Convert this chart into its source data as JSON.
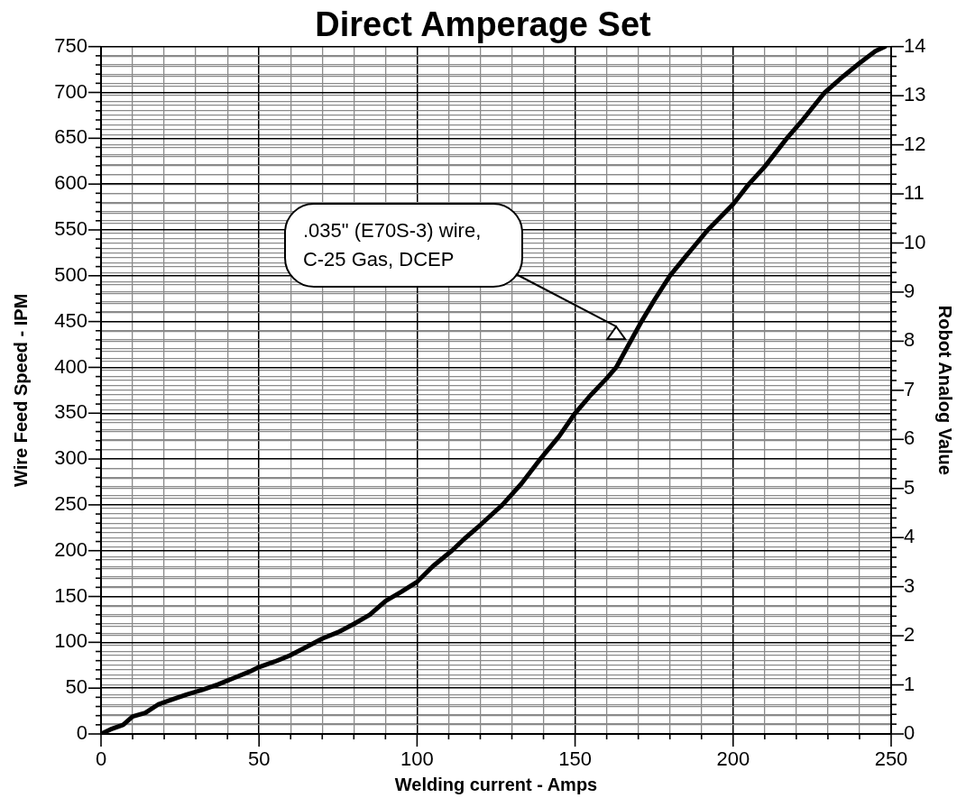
{
  "chart_data": {
    "type": "line",
    "title": "Direct Amperage Set",
    "xlabel": "Welding current - Amps",
    "ylabel": "Wire Feed Speed - IPM",
    "y2label": "Robot Analog Value",
    "x": [
      0,
      3,
      7,
      10,
      14,
      18,
      22,
      27,
      32,
      37,
      42,
      47,
      50,
      55,
      60,
      65,
      70,
      75,
      80,
      85,
      90,
      95,
      100,
      105,
      111,
      115,
      120,
      127,
      133,
      139,
      145,
      150,
      155,
      160,
      163,
      167,
      171,
      175,
      180,
      185,
      192,
      200,
      205,
      210,
      217,
      222,
      229,
      235,
      240,
      245,
      248
    ],
    "series": [
      {
        "color": "#000000",
        "values": [
          0,
          5,
          10,
          19,
          23,
          32,
          37,
          43,
          48,
          54,
          61,
          68,
          73,
          79,
          86,
          95,
          104,
          111,
          120,
          130,
          145,
          155,
          166,
          183,
          200,
          213,
          228,
          250,
          273,
          300,
          325,
          350,
          370,
          388,
          400,
          425,
          450,
          473,
          500,
          521,
          550,
          578,
          600,
          619,
          650,
          670,
          700,
          718,
          732,
          745,
          750
        ]
      }
    ],
    "xlim": [
      0,
      250
    ],
    "ylim": [
      0,
      750
    ],
    "y2lim": [
      0,
      14
    ],
    "xticks": [
      0,
      {
        "value": 10,
        "label": null
      },
      {
        "value": 20,
        "label": null
      },
      {
        "value": 30,
        "label": null
      },
      {
        "value": 40,
        "label": null
      },
      50,
      {
        "value": 60,
        "label": null
      },
      {
        "value": 70,
        "label": null
      },
      {
        "value": 80,
        "label": null
      },
      {
        "value": 90,
        "label": null
      },
      100,
      {
        "value": 110,
        "label": null
      },
      {
        "value": 120,
        "label": null
      },
      {
        "value": 130,
        "label": null
      },
      {
        "value": 140,
        "label": null
      },
      150,
      {
        "value": 160,
        "label": null
      },
      {
        "value": 170,
        "label": null
      },
      {
        "value": 180,
        "label": null
      },
      {
        "value": 190,
        "label": null
      },
      200,
      {
        "value": 210,
        "label": null
      },
      {
        "value": 220,
        "label": null
      },
      {
        "value": 230,
        "label": null
      },
      {
        "value": 240,
        "label": null
      },
      250
    ],
    "yticks": [
      0,
      {
        "value": 10,
        "label": null
      },
      {
        "value": 20,
        "label": null
      },
      {
        "value": 30,
        "label": null
      },
      {
        "value": 40,
        "label": null
      },
      50,
      {
        "value": 60,
        "label": null
      },
      {
        "value": 70,
        "label": null
      },
      {
        "value": 80,
        "label": null
      },
      {
        "value": 90,
        "label": null
      },
      100,
      {
        "value": 110,
        "label": null
      },
      {
        "value": 120,
        "label": null
      },
      {
        "value": 130,
        "label": null
      },
      {
        "value": 140,
        "label": null
      },
      150,
      {
        "value": 160,
        "label": null
      },
      {
        "value": 170,
        "label": null
      },
      {
        "value": 180,
        "label": null
      },
      {
        "value": 190,
        "label": null
      },
      200,
      {
        "value": 210,
        "label": null
      },
      {
        "value": 220,
        "label": null
      },
      {
        "value": 230,
        "label": null
      },
      {
        "value": 240,
        "label": null
      },
      250,
      {
        "value": 260,
        "label": null
      },
      {
        "value": 270,
        "label": null
      },
      {
        "value": 280,
        "label": null
      },
      {
        "value": 290,
        "label": null
      },
      300,
      {
        "value": 310,
        "label": null
      },
      {
        "value": 320,
        "label": null
      },
      {
        "value": 330,
        "label": null
      },
      {
        "value": 340,
        "label": null
      },
      350,
      {
        "value": 360,
        "label": null
      },
      {
        "value": 370,
        "label": null
      },
      {
        "value": 380,
        "label": null
      },
      {
        "value": 390,
        "label": null
      },
      400,
      {
        "value": 410,
        "label": null
      },
      {
        "value": 420,
        "label": null
      },
      {
        "value": 430,
        "label": null
      },
      {
        "value": 440,
        "label": null
      },
      450,
      {
        "value": 460,
        "label": null
      },
      {
        "value": 470,
        "label": null
      },
      {
        "value": 480,
        "label": null
      },
      {
        "value": 490,
        "label": null
      },
      500,
      {
        "value": 510,
        "label": null
      },
      {
        "value": 520,
        "label": null
      },
      {
        "value": 530,
        "label": null
      },
      {
        "value": 540,
        "label": null
      },
      550,
      {
        "value": 560,
        "label": null
      },
      {
        "value": 570,
        "label": null
      },
      {
        "value": 580,
        "label": null
      },
      {
        "value": 590,
        "label": null
      },
      600,
      {
        "value": 610,
        "label": null
      },
      {
        "value": 620,
        "label": null
      },
      {
        "value": 630,
        "label": null
      },
      {
        "value": 640,
        "label": null
      },
      650,
      {
        "value": 660,
        "label": null
      },
      {
        "value": 670,
        "label": null
      },
      {
        "value": 680,
        "label": null
      },
      {
        "value": 690,
        "label": null
      },
      700,
      {
        "value": 710,
        "label": null
      },
      {
        "value": 720,
        "label": null
      },
      {
        "value": 730,
        "label": null
      },
      {
        "value": 740,
        "label": null
      },
      750
    ],
    "y2ticks": [
      0,
      {
        "value": 0.2,
        "label": null
      },
      {
        "value": 0.4,
        "label": null
      },
      {
        "value": 0.6,
        "label": null
      },
      {
        "value": 0.8,
        "label": null
      },
      1,
      {
        "value": 1.2,
        "label": null
      },
      {
        "value": 1.4,
        "label": null
      },
      {
        "value": 1.6,
        "label": null
      },
      {
        "value": 1.8,
        "label": null
      },
      2,
      {
        "value": 2.2,
        "label": null
      },
      {
        "value": 2.4,
        "label": null
      },
      {
        "value": 2.6,
        "label": null
      },
      {
        "value": 2.8,
        "label": null
      },
      3,
      {
        "value": 3.2,
        "label": null
      },
      {
        "value": 3.4,
        "label": null
      },
      {
        "value": 3.6,
        "label": null
      },
      {
        "value": 3.8,
        "label": null
      },
      4,
      {
        "value": 4.2,
        "label": null
      },
      {
        "value": 4.4,
        "label": null
      },
      {
        "value": 4.6,
        "label": null
      },
      {
        "value": 4.8,
        "label": null
      },
      5,
      {
        "value": 5.2,
        "label": null
      },
      {
        "value": 5.4,
        "label": null
      },
      {
        "value": 5.6,
        "label": null
      },
      {
        "value": 5.8,
        "label": null
      },
      6,
      {
        "value": 6.2,
        "label": null
      },
      {
        "value": 6.4,
        "label": null
      },
      {
        "value": 6.6,
        "label": null
      },
      {
        "value": 6.8,
        "label": null
      },
      7,
      {
        "value": 7.2,
        "label": null
      },
      {
        "value": 7.4,
        "label": null
      },
      {
        "value": 7.6,
        "label": null
      },
      {
        "value": 7.8,
        "label": null
      },
      8,
      {
        "value": 8.2,
        "label": null
      },
      {
        "value": 8.4,
        "label": null
      },
      {
        "value": 8.6,
        "label": null
      },
      {
        "value": 8.8,
        "label": null
      },
      9,
      {
        "value": 9.2,
        "label": null
      },
      {
        "value": 9.4,
        "label": null
      },
      {
        "value": 9.6,
        "label": null
      },
      {
        "value": 9.8,
        "label": null
      },
      10,
      {
        "value": 10.2,
        "label": null
      },
      {
        "value": 10.4,
        "label": null
      },
      {
        "value": 10.6,
        "label": null
      },
      {
        "value": 10.8,
        "label": null
      },
      11,
      {
        "value": 11.2,
        "label": null
      },
      {
        "value": 11.4,
        "label": null
      },
      {
        "value": 11.6,
        "label": null
      },
      {
        "value": 11.8,
        "label": null
      },
      12,
      {
        "value": 12.2,
        "label": null
      },
      {
        "value": 12.4,
        "label": null
      },
      {
        "value": 12.6,
        "label": null
      },
      {
        "value": 12.8,
        "label": null
      },
      13,
      {
        "value": 13.2,
        "label": null
      },
      {
        "value": 13.4,
        "label": null
      },
      {
        "value": 13.6,
        "label": null
      },
      {
        "value": 13.8,
        "label": null
      },
      14
    ],
    "grid": true,
    "legend": false,
    "marker": "none",
    "line_style": "solid",
    "annotations": [
      ".035\" (E70S-3) wire, C-25 Gas, DCEP"
    ]
  }
}
